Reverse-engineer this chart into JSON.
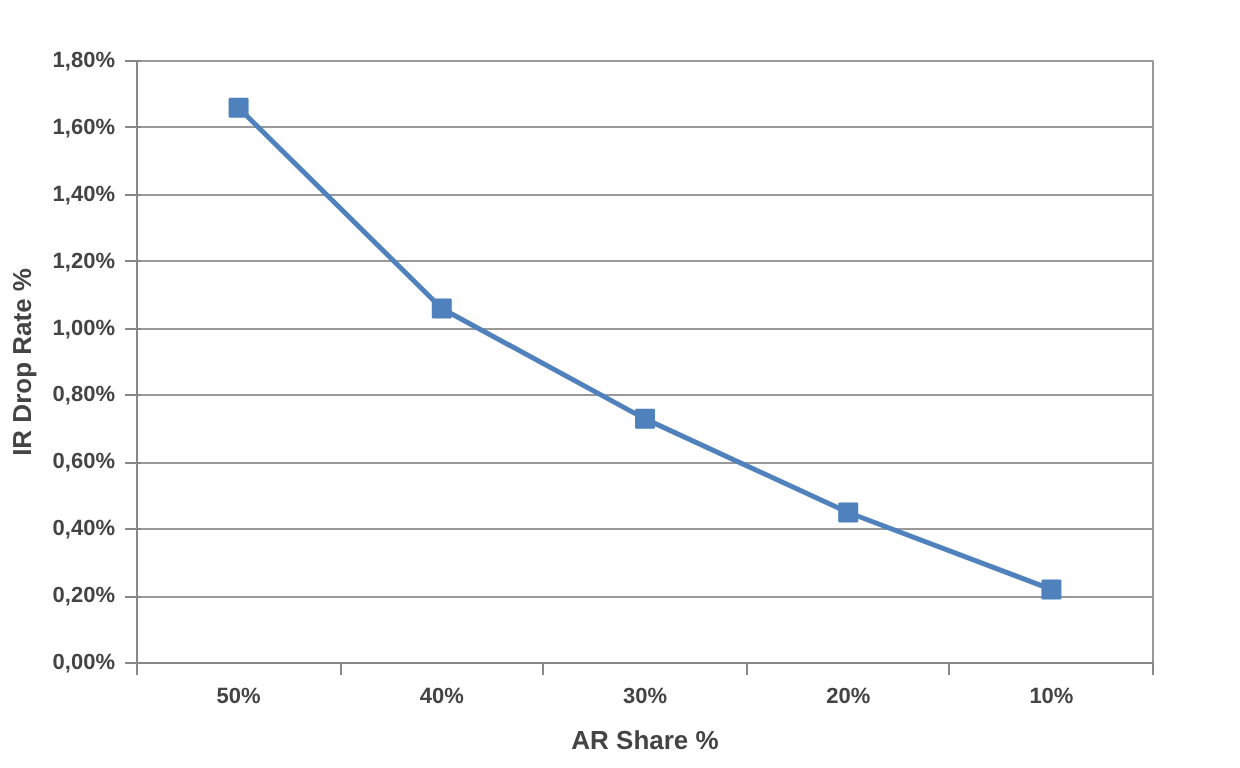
{
  "chart_data": {
    "type": "line",
    "xlabel": "AR Share %",
    "ylabel": "IR Drop Rate %",
    "categories": [
      "50%",
      "40%",
      "30%",
      "20%",
      "10%"
    ],
    "series": [
      {
        "color": "#4f81bd",
        "values": [
          1.66,
          1.06,
          0.73,
          0.45,
          0.22
        ]
      }
    ],
    "ylim": [
      0,
      1.8
    ],
    "yticks": [
      {
        "value": 0,
        "label": "0,00%"
      },
      {
        "value": 0.2,
        "label": "0,20%"
      },
      {
        "value": 0.4,
        "label": "0,40%"
      },
      {
        "value": 0.6,
        "label": "0,60%"
      },
      {
        "value": 0.8,
        "label": "0,80%"
      },
      {
        "value": 1.0,
        "label": "1,00%"
      },
      {
        "value": 1.2,
        "label": "1,20%"
      },
      {
        "value": 1.4,
        "label": "1,40%"
      },
      {
        "value": 1.6,
        "label": "1,60%"
      },
      {
        "value": 1.8,
        "label": "1,80%"
      }
    ],
    "grid": "y",
    "marker": "square",
    "line_style": "solid"
  }
}
